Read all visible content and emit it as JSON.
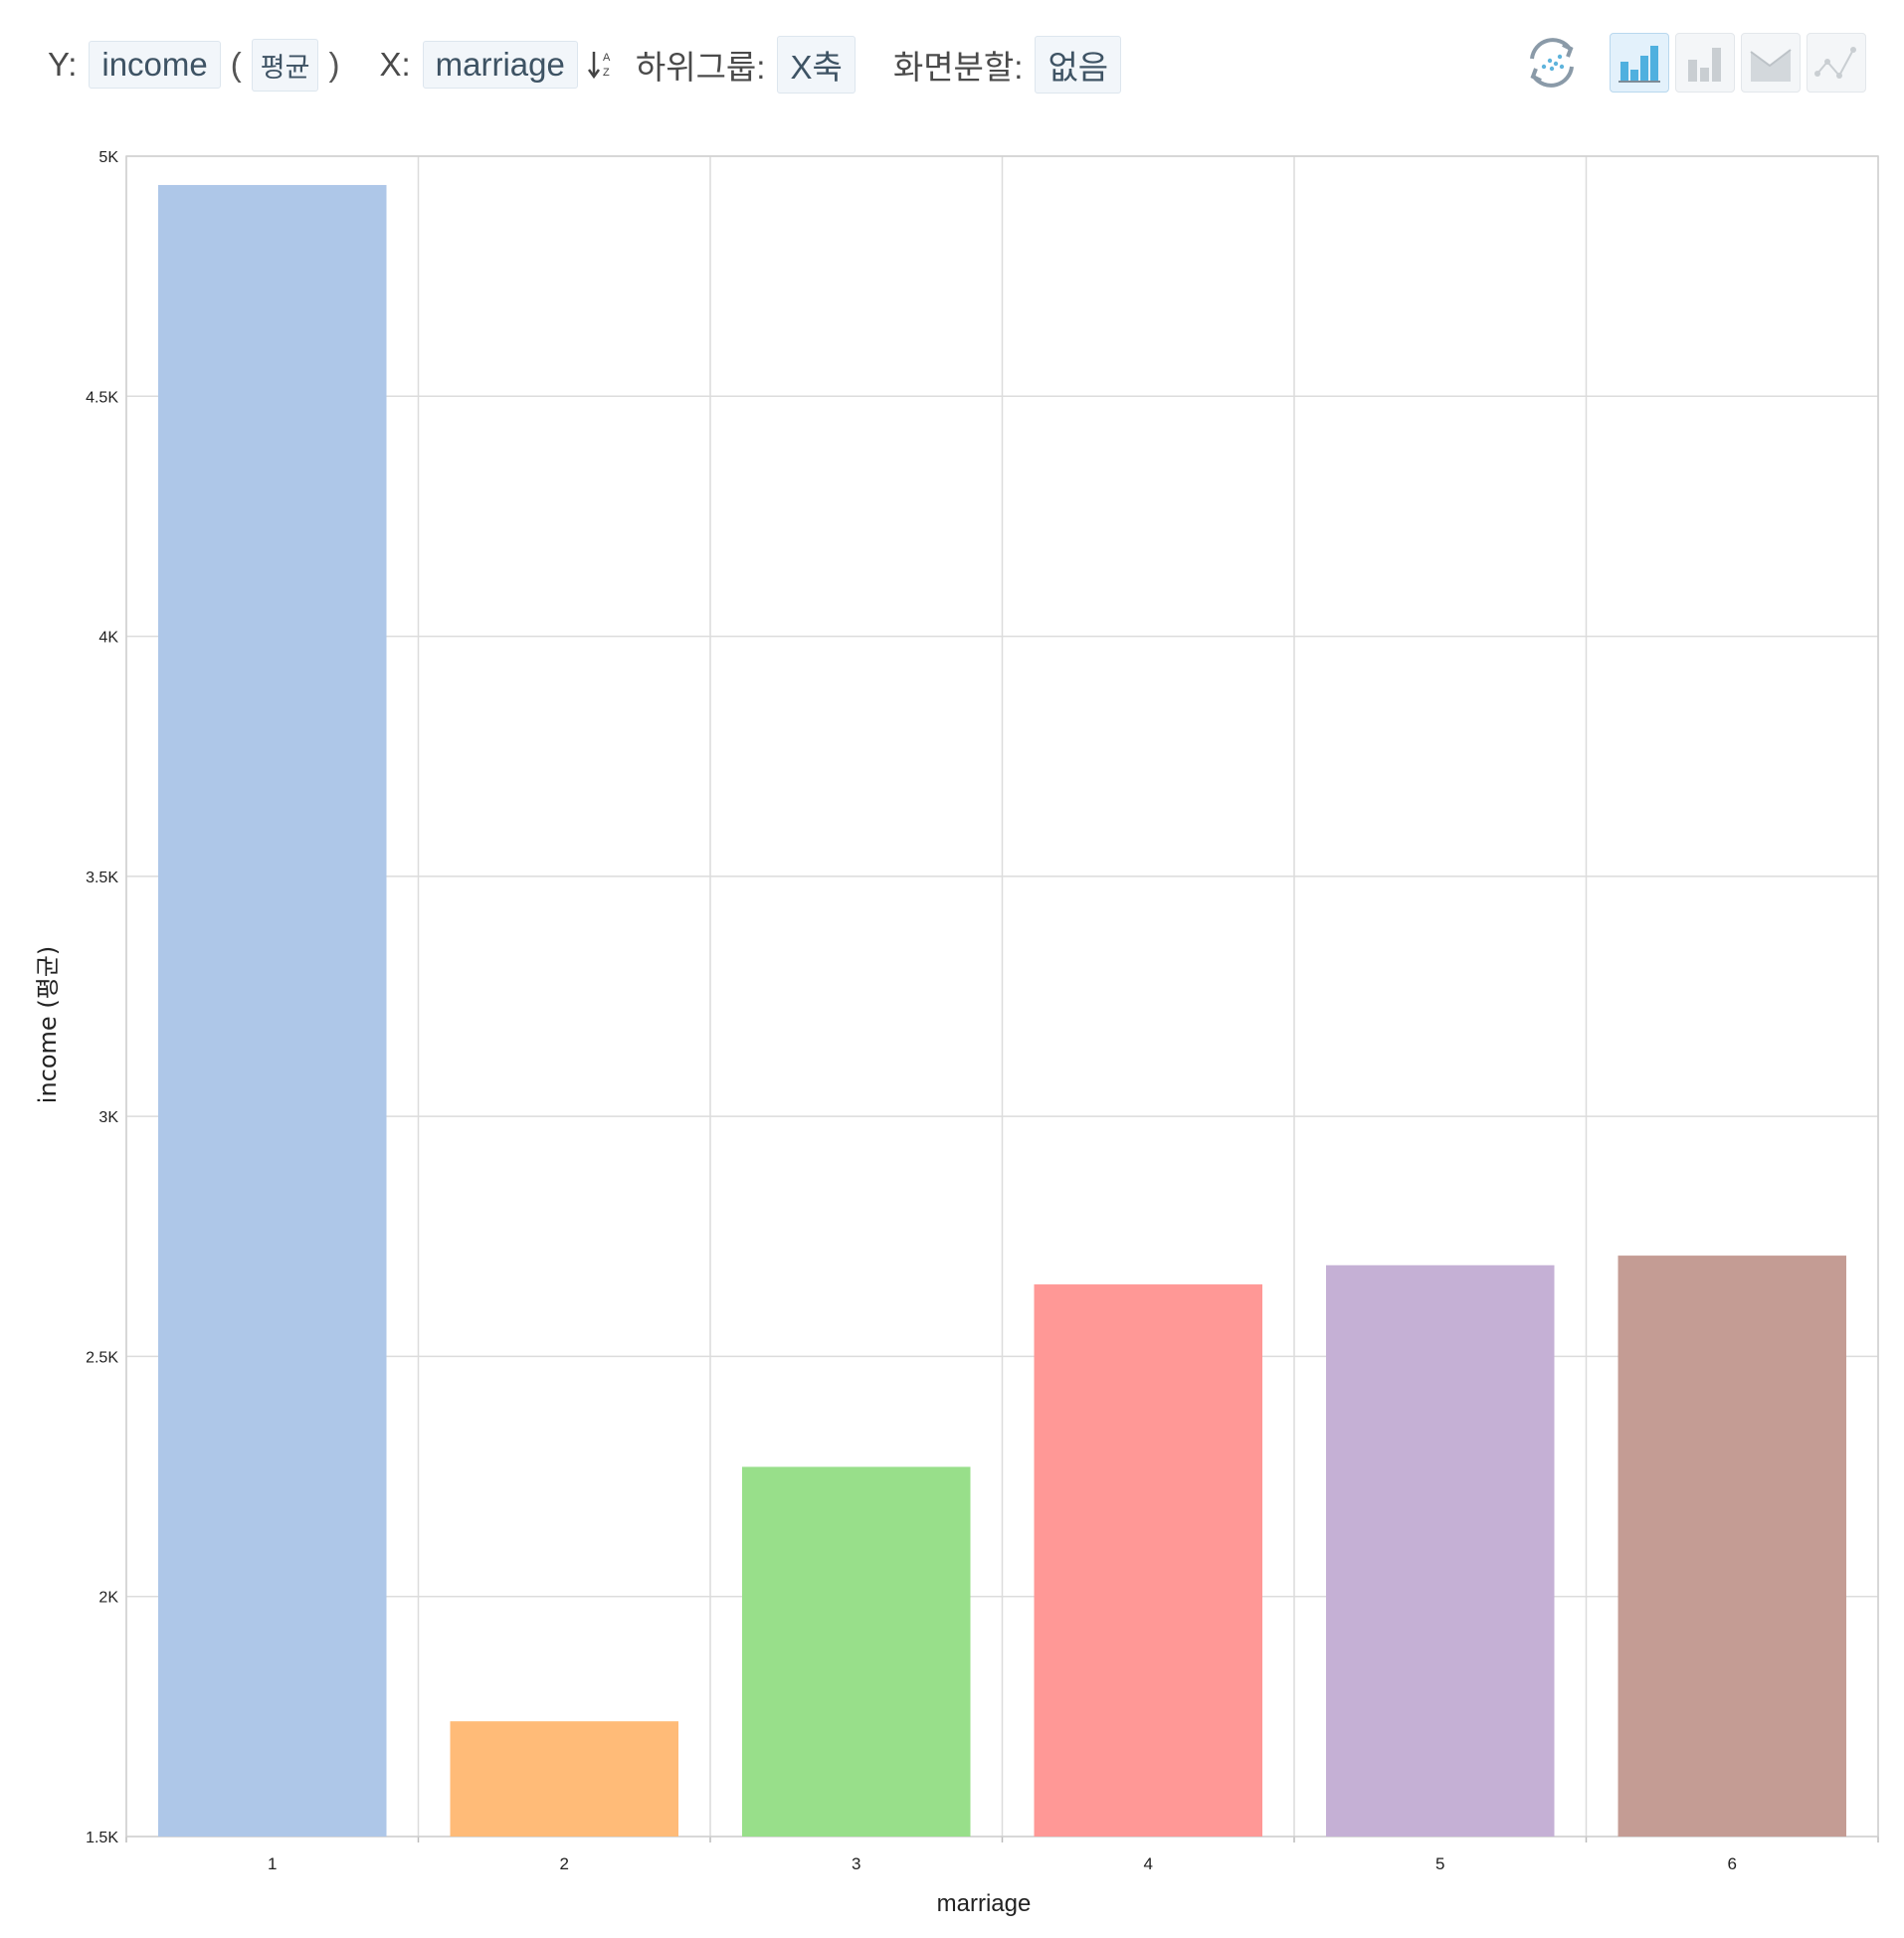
{
  "toolbar": {
    "y_label": "Y:",
    "y_field": "income",
    "paren_open": "(",
    "aggregate": "평균",
    "paren_close": ")",
    "x_label": "X:",
    "x_field": "marriage",
    "subgroup_label": "하위그룹:",
    "subgroup_value": "X축",
    "split_label": "화면분할:",
    "split_value": "없음"
  },
  "chart_types": {
    "icons": [
      "refresh-scatter-icon",
      "bar-chart-icon",
      "bar-chart-gray-icon",
      "area-chart-icon",
      "line-chart-icon"
    ],
    "active": "bar-chart-icon"
  },
  "chart_data": {
    "type": "bar",
    "categories": [
      "1",
      "2",
      "3",
      "4",
      "5",
      "6"
    ],
    "values": [
      4940,
      1740,
      2270,
      2650,
      2690,
      2710
    ],
    "colors": [
      "#aec7e8",
      "#ffbb78",
      "#98df8a",
      "#ff9896",
      "#c5b0d5",
      "#c49c94"
    ],
    "xlabel": "marriage",
    "ylabel": "income (평균)",
    "ylim": [
      1500,
      5000
    ],
    "yticks": [
      1500,
      2000,
      2500,
      3000,
      3500,
      4000,
      4500,
      5000
    ],
    "ytick_labels": [
      "1.5K",
      "2K",
      "2.5K",
      "3K",
      "3.5K",
      "4K",
      "4.5K",
      "5K"
    ],
    "grid": true
  }
}
